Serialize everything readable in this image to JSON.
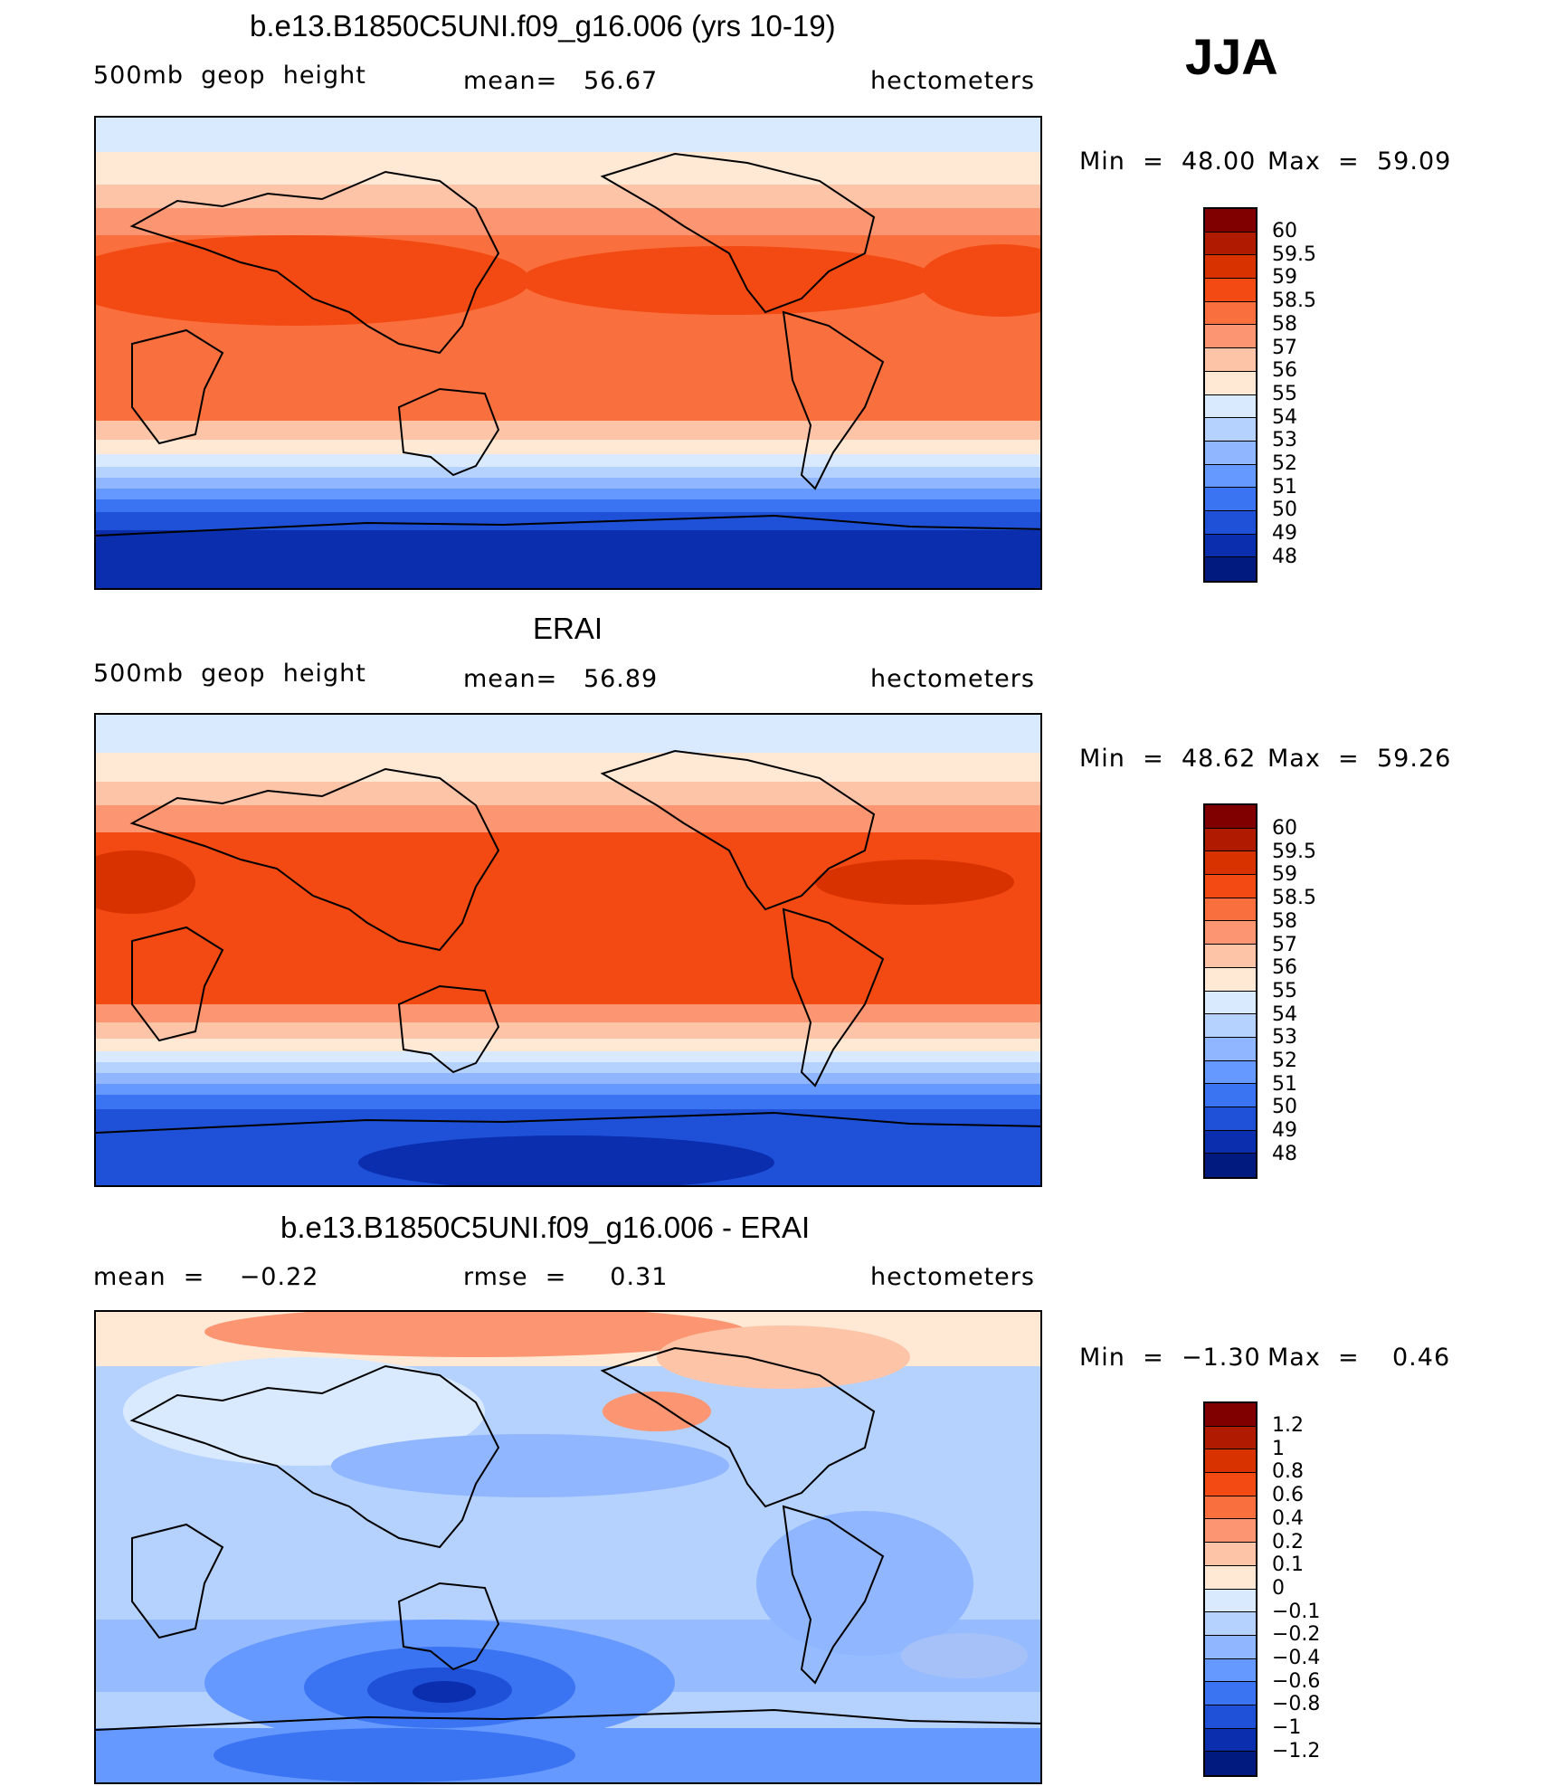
{
  "season": "JJA",
  "panels": [
    {
      "title": "b.e13.B1850C5UNI.f09_g16.006 (yrs 10-19)",
      "left_label": "500mb  geop  height",
      "center_label": "mean=   56.67",
      "right_label": "hectometers",
      "min_label": "Min  =",
      "min_value": "48.00",
      "max_label": "Max  =",
      "max_value": "59.09",
      "colorbar": {
        "labels": [
          "60",
          "59.5",
          "59",
          "58.5",
          "58",
          "57",
          "56",
          "55",
          "54",
          "53",
          "52",
          "51",
          "50",
          "49",
          "48"
        ],
        "colors": [
          "#800000",
          "#B01B00",
          "#D83200",
          "#F24A12",
          "#FA6F3E",
          "#FC9672",
          "#FDC4A8",
          "#FFE8D4",
          "#D9EAFF",
          "#B5D2FF",
          "#8FB6FF",
          "#6699FF",
          "#3A74F2",
          "#1E50D8",
          "#0A2EAE",
          "#001A80"
        ]
      }
    },
    {
      "title": "ERAI",
      "left_label": "500mb  geop  height",
      "center_label": "mean=   56.89",
      "right_label": "hectometers",
      "min_label": "Min  =",
      "min_value": "48.62",
      "max_label": "Max  =",
      "max_value": "59.26",
      "colorbar": {
        "labels": [
          "60",
          "59.5",
          "59",
          "58.5",
          "58",
          "57",
          "56",
          "55",
          "54",
          "53",
          "52",
          "51",
          "50",
          "49",
          "48"
        ],
        "colors": [
          "#800000",
          "#B01B00",
          "#D83200",
          "#F24A12",
          "#FA6F3E",
          "#FC9672",
          "#FDC4A8",
          "#FFE8D4",
          "#D9EAFF",
          "#B5D2FF",
          "#8FB6FF",
          "#6699FF",
          "#3A74F2",
          "#1E50D8",
          "#0A2EAE",
          "#001A80"
        ]
      }
    },
    {
      "title": "b.e13.B1850C5UNI.f09_g16.006 - ERAI",
      "left_label": "mean  =    −0.22",
      "center_label": "rmse  =     0.31",
      "right_label": "hectometers",
      "min_label": "Min  =",
      "min_value": "−1.30",
      "max_label": "Max  =",
      "max_value": "0.46",
      "colorbar": {
        "labels": [
          "1.2",
          "1",
          "0.8",
          "0.6",
          "0.4",
          "0.2",
          "0.1",
          "0",
          "−0.1",
          "−0.2",
          "−0.4",
          "−0.6",
          "−0.8",
          "−1",
          "−1.2"
        ],
        "colors": [
          "#800000",
          "#B01B00",
          "#D83200",
          "#F24A12",
          "#FA6F3E",
          "#FC9672",
          "#FDC4A8",
          "#FFE8D4",
          "#D9EAFF",
          "#B5D2FF",
          "#8FB6FF",
          "#6699FF",
          "#3A74F2",
          "#1E50D8",
          "#0A2EAE",
          "#001A80"
        ]
      }
    }
  ]
}
